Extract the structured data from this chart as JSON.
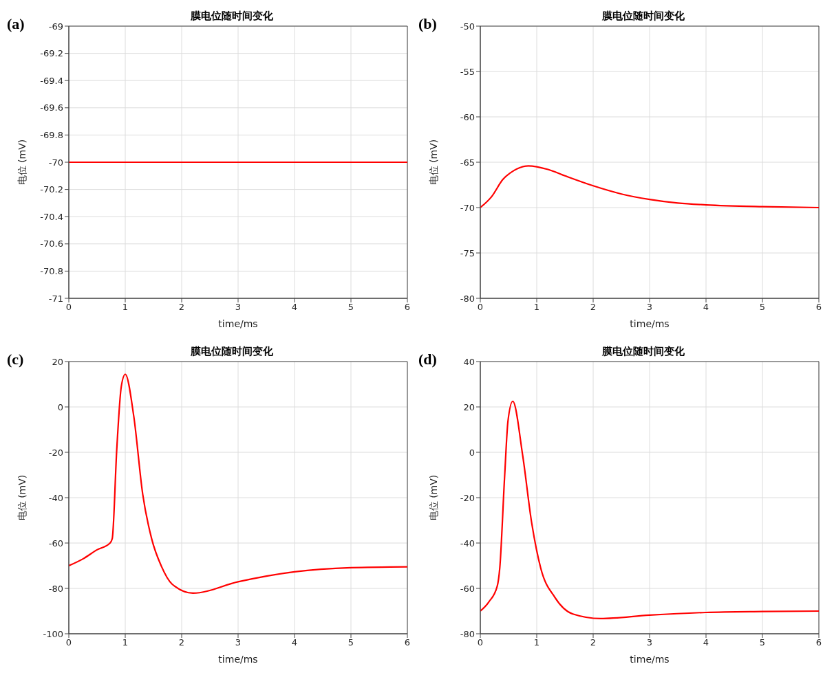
{
  "chart_data": [
    {
      "type": "line",
      "title": "膜电位随时间变化",
      "xlabel": "time/ms",
      "ylabel": "电位 (mV)",
      "annotations": [
        "(a)"
      ],
      "grid": true,
      "xlim": [
        0,
        6
      ],
      "xticks": [
        0,
        1,
        2,
        3,
        4,
        5,
        6
      ],
      "ylim": [
        -71,
        -69
      ],
      "yticks": [
        -71,
        -70.8,
        -70.6,
        -70.4,
        -70.2,
        -70,
        -69.8,
        -69.6,
        -69.4,
        -69.2,
        -69
      ],
      "series": [
        {
          "color": "#ff0000",
          "x": [
            0,
            6
          ],
          "values": [
            -70,
            -70
          ]
        }
      ]
    },
    {
      "type": "line",
      "title": "膜电位随时间变化",
      "xlabel": "time/ms",
      "ylabel": "电位 (mV)",
      "annotations": [
        "(b)"
      ],
      "grid": true,
      "xlim": [
        0,
        6
      ],
      "xticks": [
        0,
        1,
        2,
        3,
        4,
        5,
        6
      ],
      "ylim": [
        -80,
        -50
      ],
      "yticks": [
        -80,
        -75,
        -70,
        -65,
        -60,
        -55,
        -50
      ],
      "series": [
        {
          "color": "#ff0000",
          "x": [
            0,
            0.2,
            0.4,
            0.6,
            0.85,
            1.2,
            1.5,
            2,
            2.5,
            3,
            3.5,
            4,
            5,
            6
          ],
          "values": [
            -70,
            -68.8,
            -66.9,
            -65.9,
            -65.4,
            -65.8,
            -66.5,
            -67.6,
            -68.5,
            -69.1,
            -69.5,
            -69.7,
            -69.9,
            -70
          ]
        }
      ]
    },
    {
      "type": "line",
      "title": "膜电位随时间变化",
      "xlabel": "time/ms",
      "ylabel": "电位 (mV)",
      "annotations": [
        "(c)"
      ],
      "grid": true,
      "xlim": [
        0,
        6
      ],
      "xticks": [
        0,
        1,
        2,
        3,
        4,
        5,
        6
      ],
      "ylim": [
        -100,
        20
      ],
      "yticks": [
        -100,
        -80,
        -60,
        -40,
        -20,
        0,
        20
      ],
      "series": [
        {
          "color": "#ff0000",
          "x": [
            0,
            0.25,
            0.5,
            0.73,
            0.77,
            0.85,
            0.93,
            1.0,
            1.15,
            1.31,
            1.47,
            1.64,
            1.83,
            2.2,
            3.0,
            4.0,
            5.0,
            6.0
          ],
          "values": [
            -70,
            -67,
            -63,
            -60,
            -58,
            -18.6,
            9,
            14.4,
            -3.9,
            -38.5,
            -58.3,
            -70.2,
            -78.1,
            -82.1,
            -77.1,
            -72.7,
            -70.9,
            -70.5
          ]
        }
      ]
    },
    {
      "type": "line",
      "title": "膜电位随时间变化",
      "xlabel": "time/ms",
      "ylabel": "电位 (mV)",
      "annotations": [
        "(d)"
      ],
      "grid": true,
      "xlim": [
        0,
        6
      ],
      "xticks": [
        0,
        1,
        2,
        3,
        4,
        5,
        6
      ],
      "ylim": [
        -80,
        40
      ],
      "yticks": [
        -80,
        -60,
        -40,
        -20,
        0,
        20,
        40
      ],
      "series": [
        {
          "color": "#ff0000",
          "x": [
            0,
            0.15,
            0.3,
            0.345,
            0.43,
            0.49,
            0.575,
            0.75,
            0.91,
            1.07,
            1.32,
            1.64,
            2.13,
            3.0,
            4.0,
            5.0,
            6.0
          ],
          "values": [
            -70,
            -66,
            -59,
            -51,
            -11.1,
            13.7,
            22.5,
            -1.2,
            -31,
            -51,
            -63.9,
            -71.3,
            -73.3,
            -71.8,
            -70.6,
            -70.2,
            -70
          ]
        }
      ]
    }
  ]
}
